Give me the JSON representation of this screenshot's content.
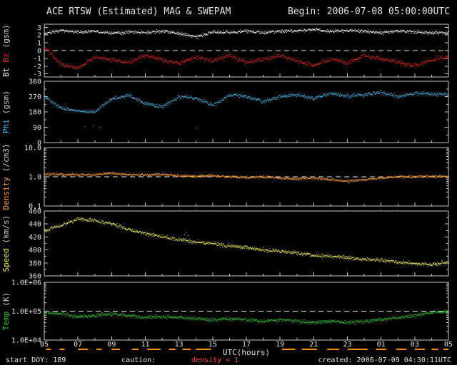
{
  "header": {
    "title": "ACE RTSW (Estimated) MAG & SWEPAM",
    "begin_label": "Begin: 2006-07-08 05:00:00UTC"
  },
  "footer": {
    "start_doy": "start DOY: 189",
    "caution_label": "caution:",
    "caution_value": "density < 1",
    "created": "created: 2006-07-09 04:30:11UTC"
  },
  "colors": {
    "background": "#000000",
    "frame": "#c8c8c8",
    "text": "#e0e0e0",
    "bt": "#f0f0f0",
    "bz": "#e02020",
    "phi": "#44b4e6",
    "density": "#ff9b28",
    "speed": "#eded4e",
    "temp": "#2ec82e",
    "caution_marks": "#ff8c00",
    "caution_text": "#ff4040",
    "dashed_line": "#e8e8e8"
  },
  "x_axis": {
    "label": "UTC(hours)",
    "tick_labels": [
      "05",
      "07",
      "09",
      "11",
      "13",
      "15",
      "17",
      "19",
      "21",
      "23",
      "01",
      "03",
      "05"
    ],
    "tick_hours": [
      0,
      2,
      4,
      6,
      8,
      10,
      12,
      14,
      16,
      18,
      20,
      22,
      24
    ],
    "anchor_hours": [
      0,
      1,
      2,
      3,
      4,
      5,
      6,
      7,
      8,
      9,
      10,
      11,
      12,
      13,
      14,
      15,
      16,
      17,
      18,
      19,
      20,
      21,
      22,
      23,
      24
    ],
    "range": [
      0,
      24
    ]
  },
  "caution_ranges": [
    [
      0.1,
      0.4
    ],
    [
      0.9,
      1.2
    ],
    [
      2.0,
      2.6
    ],
    [
      3.1,
      3.4
    ],
    [
      4.0,
      4.5
    ],
    [
      5.2,
      5.6
    ],
    [
      6.1,
      6.9
    ],
    [
      7.4,
      7.8
    ],
    [
      8.2,
      8.7
    ],
    [
      9.0,
      9.9
    ],
    [
      14.1,
      14.9
    ],
    [
      15.3,
      16.2
    ],
    [
      16.8,
      17.5
    ],
    [
      18.0,
      19.2
    ],
    [
      19.7,
      20.3
    ],
    [
      20.9,
      21.5
    ],
    [
      22.0,
      22.6
    ],
    [
      23.0,
      23.4
    ],
    [
      23.7,
      24.0
    ]
  ],
  "chart_data": [
    {
      "type": "scatter",
      "name": "mag",
      "yscale": "linear",
      "ylim": [
        -3.4,
        3.4
      ],
      "ytick_values": [
        3,
        2,
        1,
        0,
        -1,
        -2,
        -3
      ],
      "ytick_labels": [
        "3",
        "2",
        "1",
        "0",
        "-1",
        "-2",
        "-3"
      ],
      "ytick_minor": [],
      "dashed_at": 0,
      "ylabel": [
        {
          "text": "Bt",
          "color": "#f0f0f0"
        },
        {
          "text": "Bz",
          "color": "#e02020"
        },
        {
          "text": "(gsm)",
          "color": "#cccccc"
        }
      ],
      "series": [
        {
          "name": "Bt",
          "color": "#f0f0f0",
          "noise": 0.25,
          "values": [
            2.2,
            2.6,
            2.4,
            2.5,
            2.2,
            2.4,
            2.3,
            2.5,
            2.2,
            1.8,
            2.4,
            2.3,
            2.5,
            2.3,
            2.5,
            2.6,
            2.7,
            2.5,
            2.6,
            2.5,
            2.3,
            2.5,
            2.4,
            2.3,
            2.3
          ]
        },
        {
          "name": "Bz",
          "color": "#e02020",
          "noise": 0.35,
          "values": [
            0.5,
            -1.8,
            -2.2,
            -0.8,
            -1.2,
            -1.6,
            -0.6,
            -1.2,
            -1.6,
            -0.9,
            -1.3,
            -0.6,
            -1.5,
            -1.1,
            -0.6,
            -1.4,
            -1.9,
            -1.1,
            -1.6,
            -0.7,
            -1.1,
            -1.5,
            -1.9,
            -1.2,
            -0.8
          ]
        }
      ]
    },
    {
      "type": "scatter",
      "name": "phi",
      "yscale": "linear",
      "ylim": [
        0,
        360
      ],
      "ytick_values": [
        360,
        270,
        180,
        90,
        0
      ],
      "ytick_labels": [
        "360",
        "270",
        "180",
        "90",
        "0"
      ],
      "ytick_minor": [
        45,
        135,
        225,
        315
      ],
      "dashed_at": null,
      "ylabel": [
        {
          "text": "Phi",
          "color": "#44b4e6"
        },
        {
          "text": "(gsm)",
          "color": "#cccccc"
        }
      ],
      "series": [
        {
          "name": "Phi",
          "color": "#44b4e6",
          "noise": 14,
          "values": [
            270,
            200,
            185,
            180,
            260,
            275,
            230,
            210,
            270,
            260,
            220,
            280,
            270,
            240,
            270,
            280,
            260,
            290,
            270,
            280,
            295,
            270,
            290,
            285,
            280
          ],
          "outliers": [
            [
              2.4,
              95
            ],
            [
              2.9,
              100
            ],
            [
              3.3,
              90
            ],
            [
              9.0,
              85
            ]
          ]
        }
      ]
    },
    {
      "type": "scatter",
      "name": "density",
      "yscale": "log",
      "ylim": [
        0.1,
        10
      ],
      "ytick_values": [
        10,
        1,
        0.1
      ],
      "ytick_labels": [
        "10.0",
        "1.0",
        "0.1"
      ],
      "ytick_minor": [
        0.2,
        0.3,
        0.4,
        0.5,
        0.6,
        0.7,
        0.8,
        0.9,
        2,
        3,
        4,
        5,
        6,
        7,
        8,
        9
      ],
      "dashed_at": 1,
      "ylabel": [
        {
          "text": "Density",
          "color": "#ff9b28"
        },
        {
          "text": "(/cm3)",
          "color": "#cccccc"
        }
      ],
      "series": [
        {
          "name": "Density",
          "color": "#ff9b28",
          "noise": 0.055,
          "values": [
            1.25,
            1.2,
            1.15,
            1.2,
            1.3,
            1.2,
            1.15,
            1.2,
            1.1,
            1.05,
            1.1,
            1.0,
            0.95,
            1.0,
            0.9,
            0.85,
            0.9,
            0.8,
            0.7,
            0.8,
            0.9,
            1.0,
            1.0,
            1.05,
            1.0
          ]
        }
      ]
    },
    {
      "type": "scatter",
      "name": "speed",
      "yscale": "linear",
      "ylim": [
        360,
        460
      ],
      "ytick_values": [
        460,
        440,
        420,
        400,
        380,
        360
      ],
      "ytick_labels": [
        "460",
        "440",
        "420",
        "400",
        "380",
        "360"
      ],
      "ytick_minor": [
        370,
        390,
        410,
        430,
        450
      ],
      "dashed_at": null,
      "ylabel": [
        {
          "text": "Speed",
          "color": "#eded4e"
        },
        {
          "text": "(km/s)",
          "color": "#cccccc"
        }
      ],
      "series": [
        {
          "name": "Speed",
          "color": "#eded4e",
          "noise": 3.5,
          "values": [
            430,
            438,
            448,
            445,
            440,
            432,
            425,
            420,
            416,
            412,
            410,
            406,
            404,
            400,
            398,
            395,
            392,
            390,
            388,
            386,
            384,
            381,
            379,
            377,
            382
          ],
          "outliers": [
            [
              8.3,
              424
            ],
            [
              8.4,
              427
            ],
            [
              8.5,
              422
            ]
          ]
        }
      ]
    },
    {
      "type": "scatter",
      "name": "temp",
      "yscale": "log",
      "ylim": [
        10000,
        1000000
      ],
      "ytick_values": [
        1000000,
        100000,
        10000
      ],
      "ytick_labels": [
        "1.0E+06",
        "1.0E+05",
        "1.0E+04"
      ],
      "ytick_minor": [
        20000,
        30000,
        40000,
        50000,
        60000,
        70000,
        80000,
        90000,
        200000,
        300000,
        400000,
        500000,
        600000,
        700000,
        800000,
        900000
      ],
      "dashed_at": 100000,
      "ylabel": [
        {
          "text": "Temp",
          "color": "#2ec82e"
        },
        {
          "text": "(K)",
          "color": "#cccccc"
        }
      ],
      "series": [
        {
          "name": "Temp",
          "color": "#2ec82e",
          "noise": 0.08,
          "values": [
            90000,
            80000,
            65000,
            70000,
            80000,
            70000,
            60000,
            65000,
            60000,
            55000,
            50000,
            55000,
            50000,
            45000,
            50000,
            45000,
            40000,
            45000,
            40000,
            45000,
            50000,
            60000,
            70000,
            90000,
            95000
          ]
        }
      ]
    }
  ]
}
